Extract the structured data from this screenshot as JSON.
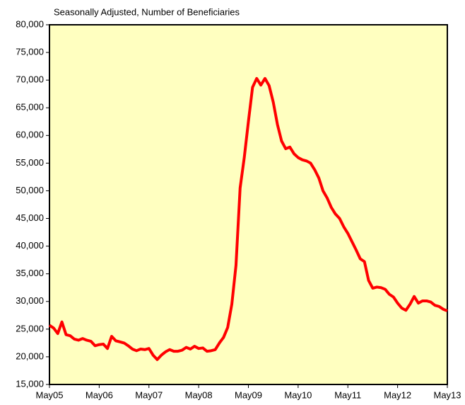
{
  "chart_data": {
    "type": "line",
    "title": "Seasonally Adjusted, Number of Beneficiaries",
    "categories": [
      "May05",
      null,
      null,
      null,
      null,
      null,
      null,
      null,
      null,
      null,
      null,
      null,
      "May06",
      null,
      null,
      null,
      null,
      null,
      null,
      null,
      null,
      null,
      null,
      null,
      "May07",
      null,
      null,
      null,
      null,
      null,
      null,
      null,
      null,
      null,
      null,
      null,
      "May08",
      null,
      null,
      null,
      null,
      null,
      null,
      null,
      null,
      null,
      null,
      null,
      "May09",
      null,
      null,
      null,
      null,
      null,
      null,
      null,
      null,
      null,
      null,
      null,
      "May10",
      null,
      null,
      null,
      null,
      null,
      null,
      null,
      null,
      null,
      null,
      null,
      "May11",
      null,
      null,
      null,
      null,
      null,
      null,
      null,
      null,
      null,
      null,
      null,
      "May12",
      null,
      null,
      null,
      null,
      null,
      null,
      null,
      null,
      null,
      null,
      null,
      "May13"
    ],
    "series": [
      {
        "color": "#ff0000",
        "values": [
          25700,
          25200,
          24200,
          26300,
          24000,
          23800,
          23200,
          23000,
          23300,
          23000,
          22800,
          22000,
          22200,
          22300,
          21500,
          23700,
          22900,
          22700,
          22500,
          22000,
          21400,
          21100,
          21400,
          21300,
          21500,
          20300,
          19500,
          20300,
          20900,
          21300,
          21000,
          21000,
          21200,
          21700,
          21400,
          21900,
          21500,
          21600,
          21000,
          21100,
          21300,
          22500,
          23500,
          25300,
          29500,
          36500,
          50500,
          56000,
          62500,
          68700,
          70300,
          69100,
          70300,
          69000,
          66000,
          62000,
          59000,
          57600,
          57900,
          56700,
          56000,
          55600,
          55400,
          55000,
          53800,
          52300,
          50000,
          48700,
          47000,
          45800,
          45000,
          43500,
          42300,
          40800,
          39300,
          37700,
          37200,
          33800,
          32400,
          32600,
          32500,
          32200,
          31300,
          30800,
          29700,
          28800,
          28400,
          29500,
          30900,
          29700,
          30100,
          30100,
          29900,
          29300,
          29100,
          28600,
          28300
        ]
      }
    ],
    "ylim": [
      15000,
      80000
    ],
    "yticks": [
      {
        "value": 15000,
        "label": "15,000"
      },
      {
        "value": 20000,
        "label": "20,000"
      },
      {
        "value": 25000,
        "label": "25,000"
      },
      {
        "value": 30000,
        "label": "30,000"
      },
      {
        "value": 35000,
        "label": "35,000"
      },
      {
        "value": 40000,
        "label": "40,000"
      },
      {
        "value": 45000,
        "label": "45,000"
      },
      {
        "value": 50000,
        "label": "50,000"
      },
      {
        "value": 55000,
        "label": "55,000"
      },
      {
        "value": 60000,
        "label": "60,000"
      },
      {
        "value": 65000,
        "label": "65,000"
      },
      {
        "value": 70000,
        "label": "70,000"
      },
      {
        "value": 75000,
        "label": "75,000"
      },
      {
        "value": 80000,
        "label": "80,000"
      }
    ],
    "plot_background": "#ffffc0"
  }
}
